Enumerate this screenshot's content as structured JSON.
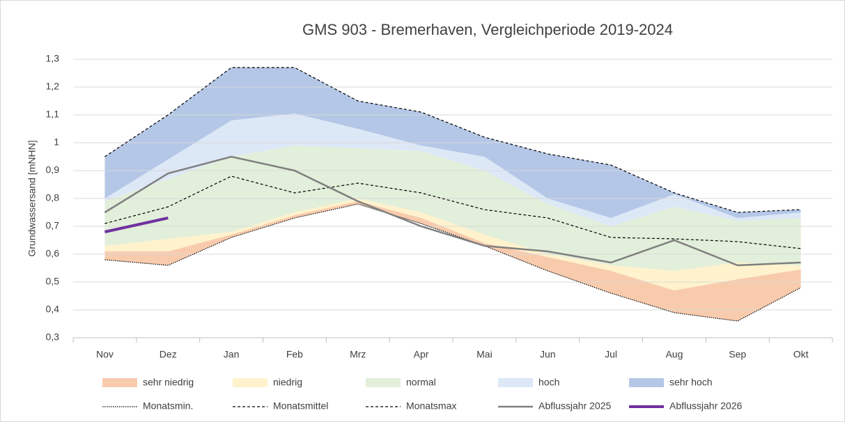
{
  "chart_data": {
    "type": "area",
    "title": "GMS 903 - Bremerhaven, Vergleichperiode 2019-2024",
    "y_label": "Grundwassersand [mNHN]",
    "categories": [
      "Nov",
      "Dez",
      "Jan",
      "Feb",
      "Mrz",
      "Apr",
      "Mai",
      "Jun",
      "Jul",
      "Aug",
      "Sep",
      "Okt"
    ],
    "ylim": [
      0.3,
      1.3
    ],
    "yticks": [
      {
        "value": 0.3,
        "label": "0,3"
      },
      {
        "value": 0.4,
        "label": "0,4"
      },
      {
        "value": 0.5,
        "label": "0,5"
      },
      {
        "value": 0.6,
        "label": "0,6"
      },
      {
        "value": 0.7,
        "label": "0,7"
      },
      {
        "value": 0.8,
        "label": "0,8"
      },
      {
        "value": 0.9,
        "label": "0,9"
      },
      1,
      {
        "value": 1.1,
        "label": "1,1"
      },
      {
        "value": 1.2,
        "label": "1,2"
      },
      {
        "value": 1.3,
        "label": "1,3"
      }
    ],
    "grid": true,
    "legend": "bottom",
    "series": [
      {
        "name": "sehr niedrig",
        "kind": "band",
        "color": "#f8cbad",
        "values": [
          0.03,
          0.05,
          0.01,
          0.01,
          0.01,
          0.02,
          0.01,
          0.05,
          0.08,
          0.08,
          0.15,
          0.065
        ]
      },
      {
        "name": "niedrig",
        "kind": "band",
        "color": "#fff2cc",
        "values": [
          0.02,
          0.045,
          0.01,
          0.01,
          0.01,
          0.02,
          0.03,
          0.01,
          0.02,
          0.07,
          0.06,
          0.015
        ]
      },
      {
        "name": "normal",
        "kind": "band",
        "color": "#e2efda",
        "values": [
          0.16,
          0.215,
          0.27,
          0.24,
          0.18,
          0.22,
          0.23,
          0.18,
          0.14,
          0.23,
          0.15,
          0.17
        ]
      },
      {
        "name": "hoch",
        "kind": "band",
        "color": "#dde8f7",
        "values": [
          0.01,
          0.07,
          0.13,
          0.115,
          0.07,
          0.02,
          0.05,
          0.02,
          0.03,
          0.045,
          0.01,
          0.02
        ]
      },
      {
        "name": "sehr hoch",
        "kind": "band",
        "color": "#b4c7e7",
        "values": [
          0.15,
          0.16,
          0.19,
          0.165,
          0.1,
          0.12,
          0.07,
          0.16,
          0.19,
          0.005,
          0.02,
          0.01
        ]
      },
      {
        "name": "Monatsmin.",
        "kind": "line",
        "dash": "dotted",
        "color": "#000000",
        "values": [
          0.58,
          0.56,
          0.66,
          0.73,
          0.78,
          0.71,
          0.63,
          0.54,
          0.46,
          0.39,
          0.36,
          0.48
        ]
      },
      {
        "name": "Monatsmittel",
        "kind": "line",
        "dash": "dashed",
        "color": "#000000",
        "values": [
          0.71,
          0.77,
          0.88,
          0.82,
          0.855,
          0.82,
          0.76,
          0.73,
          0.66,
          0.655,
          0.645,
          0.62
        ]
      },
      {
        "name": "Monatsmax",
        "kind": "line",
        "dash": "dashed",
        "color": "#000000",
        "values": [
          0.95,
          1.1,
          1.27,
          1.27,
          1.15,
          1.11,
          1.02,
          0.96,
          0.92,
          0.82,
          0.75,
          0.76
        ]
      },
      {
        "name": "Abflussjahr 2025",
        "kind": "line",
        "dash": "solid",
        "color": "#7f7f7f",
        "values": [
          0.75,
          0.89,
          0.95,
          0.9,
          0.79,
          0.7,
          0.63,
          0.61,
          0.57,
          0.65,
          0.56,
          0.57
        ]
      },
      {
        "name": "Abflussjahr 2026",
        "kind": "line",
        "dash": "solid",
        "color": "#7030a0",
        "values": [
          0.68,
          0.73,
          null,
          null,
          null,
          null,
          null,
          null,
          null,
          null,
          null,
          null
        ]
      }
    ]
  }
}
